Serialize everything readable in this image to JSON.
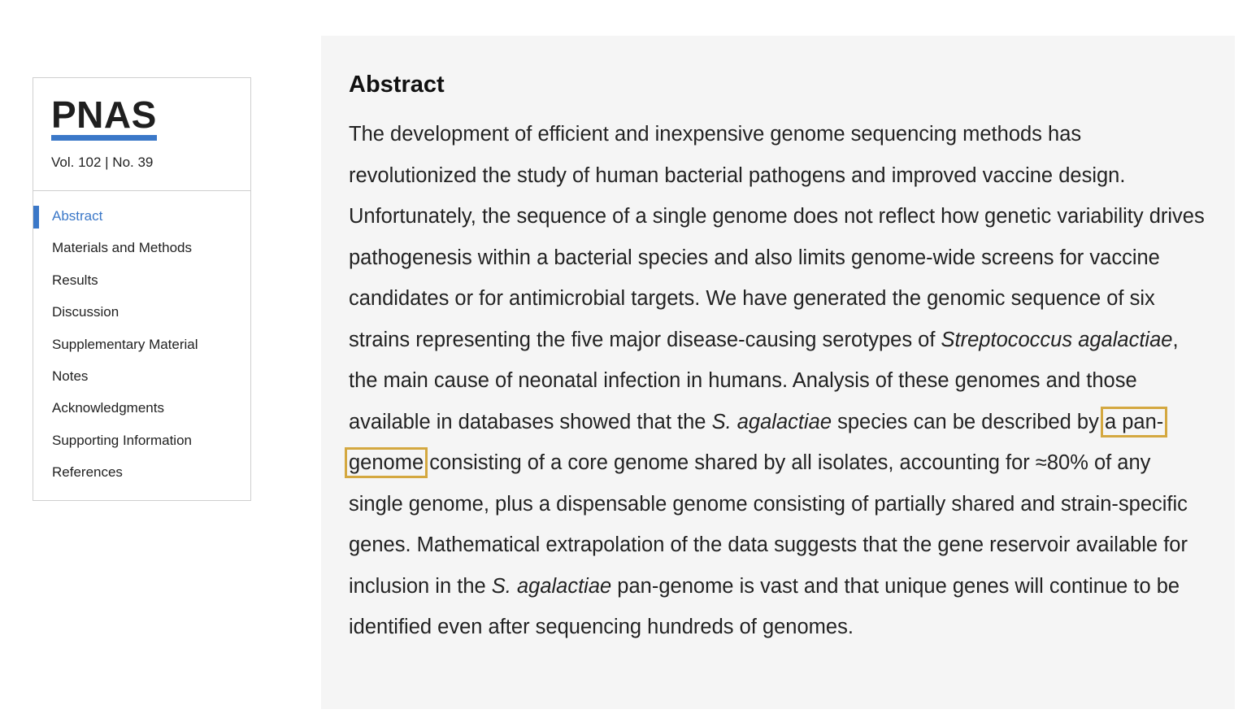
{
  "sidebar": {
    "logo": "PNAS",
    "volume": "Vol. 102 | No. 39",
    "items": [
      {
        "label": "Abstract",
        "active": true
      },
      {
        "label": "Materials and Methods"
      },
      {
        "label": "Results"
      },
      {
        "label": "Discussion"
      },
      {
        "label": "Supplementary Material"
      },
      {
        "label": "Notes"
      },
      {
        "label": "Acknowledgments"
      },
      {
        "label": "Supporting Information"
      },
      {
        "label": "References"
      }
    ]
  },
  "abstract": {
    "heading": "Abstract",
    "seg1": "The development of efficient and inexpensive genome sequencing methods has revolutionized the study of human bacterial pathogens and improved vaccine design. Unfortunately, the sequence of a single genome does not reflect how genetic variability drives pathogenesis within a bacterial species and also limits genome-wide screens for vaccine candidates or for antimicrobial targets. We have generated the genomic sequence of six strains representing the five major disease-causing serotypes of ",
    "species_full": "Streptococcus agalactiae",
    "seg2": ", the main cause of neonatal infection in humans. Analysis of these genomes and those available in databases showed that the ",
    "species_short_1": "S. agalactiae",
    "seg3": " species can be described by ",
    "highlighted": "a pan-genome",
    "seg4": " consisting of a core genome shared by all isolates, accounting for ≈80% of any single genome, plus a dispensable genome consisting of partially shared and strain-specific genes. Mathematical extrapolation of the data suggests that the gene reservoir available for inclusion in the ",
    "species_short_2": "S. agalactiae",
    "seg5": " pan-genome is vast and that unique genes will continue to be identified even after sequencing hundreds of genomes."
  },
  "colors": {
    "accent": "#3b78c8",
    "highlight": "#d4a840",
    "panel_bg": "#f5f5f5"
  }
}
